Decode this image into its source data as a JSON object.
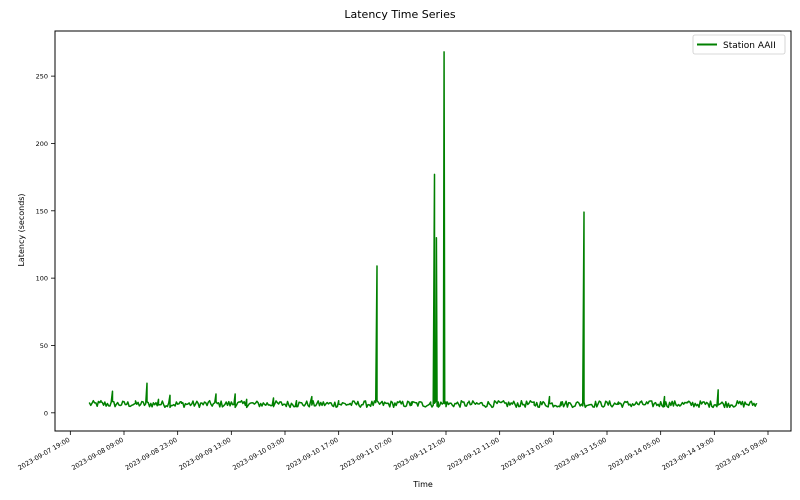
{
  "chart_data": {
    "type": "line",
    "title": "Latency Time Series",
    "xlabel": "Time",
    "ylabel": "Latency (seconds)",
    "x_axis_type": "datetime",
    "xlim": [
      "2023-09-07 15:00",
      "2023-09-15 15:00"
    ],
    "ylim": [
      -13.5,
      283.5
    ],
    "x_ticks": [
      "2023-09-07 19:00",
      "2023-09-08 09:00",
      "2023-09-08 23:00",
      "2023-09-09 13:00",
      "2023-09-10 03:00",
      "2023-09-10 17:00",
      "2023-09-11 07:00",
      "2023-09-11 21:00",
      "2023-09-12 11:00",
      "2023-09-13 01:00",
      "2023-09-13 15:00",
      "2023-09-14 05:00",
      "2023-09-14 19:00",
      "2023-09-15 09:00"
    ],
    "y_ticks": [
      0,
      50,
      100,
      150,
      200,
      250
    ],
    "grid": false,
    "legend_position": "top-right",
    "series": [
      {
        "name": "Station AAII",
        "color": "#008000",
        "description_baseline": "noisy baseline between approximately 4 and 11 seconds",
        "points": [
          [
            "2023-09-08 00:00",
            7
          ],
          [
            "2023-09-08 03:00",
            9
          ],
          [
            "2023-09-08 06:00",
            16
          ],
          [
            "2023-09-08 09:00",
            8
          ],
          [
            "2023-09-08 12:00",
            7
          ],
          [
            "2023-09-08 15:00",
            22
          ],
          [
            "2023-09-08 18:00",
            10
          ],
          [
            "2023-09-08 21:00",
            13
          ],
          [
            "2023-09-09 00:00",
            8
          ],
          [
            "2023-09-09 06:00",
            8
          ],
          [
            "2023-09-09 09:00",
            14
          ],
          [
            "2023-09-09 14:00",
            14
          ],
          [
            "2023-09-09 17:00",
            10
          ],
          [
            "2023-09-10 00:00",
            11
          ],
          [
            "2023-09-10 06:00",
            9
          ],
          [
            "2023-09-10 10:00",
            12
          ],
          [
            "2023-09-10 17:00",
            9
          ],
          [
            "2023-09-11 00:00",
            8
          ],
          [
            "2023-09-11 03:00",
            109
          ],
          [
            "2023-09-11 06:00",
            7
          ],
          [
            "2023-09-11 12:00",
            8
          ],
          [
            "2023-09-11 17:00",
            8
          ],
          [
            "2023-09-11 18:00",
            177
          ],
          [
            "2023-09-11 18:30",
            130
          ],
          [
            "2023-09-11 19:00",
            8
          ],
          [
            "2023-09-11 20:30",
            268
          ],
          [
            "2023-09-11 21:00",
            8
          ],
          [
            "2023-09-12 03:00",
            8
          ],
          [
            "2023-09-12 10:00",
            8
          ],
          [
            "2023-09-12 20:00",
            8
          ],
          [
            "2023-09-13 00:00",
            12
          ],
          [
            "2023-09-13 03:00",
            8
          ],
          [
            "2023-09-13 09:00",
            149
          ],
          [
            "2023-09-13 12:00",
            8
          ],
          [
            "2023-09-13 18:00",
            8
          ],
          [
            "2023-09-14 00:00",
            8
          ],
          [
            "2023-09-14 06:00",
            12
          ],
          [
            "2023-09-14 12:00",
            8
          ],
          [
            "2023-09-14 20:00",
            17
          ],
          [
            "2023-09-15 03:00",
            8
          ],
          [
            "2023-09-15 06:00",
            7
          ]
        ]
      }
    ]
  }
}
